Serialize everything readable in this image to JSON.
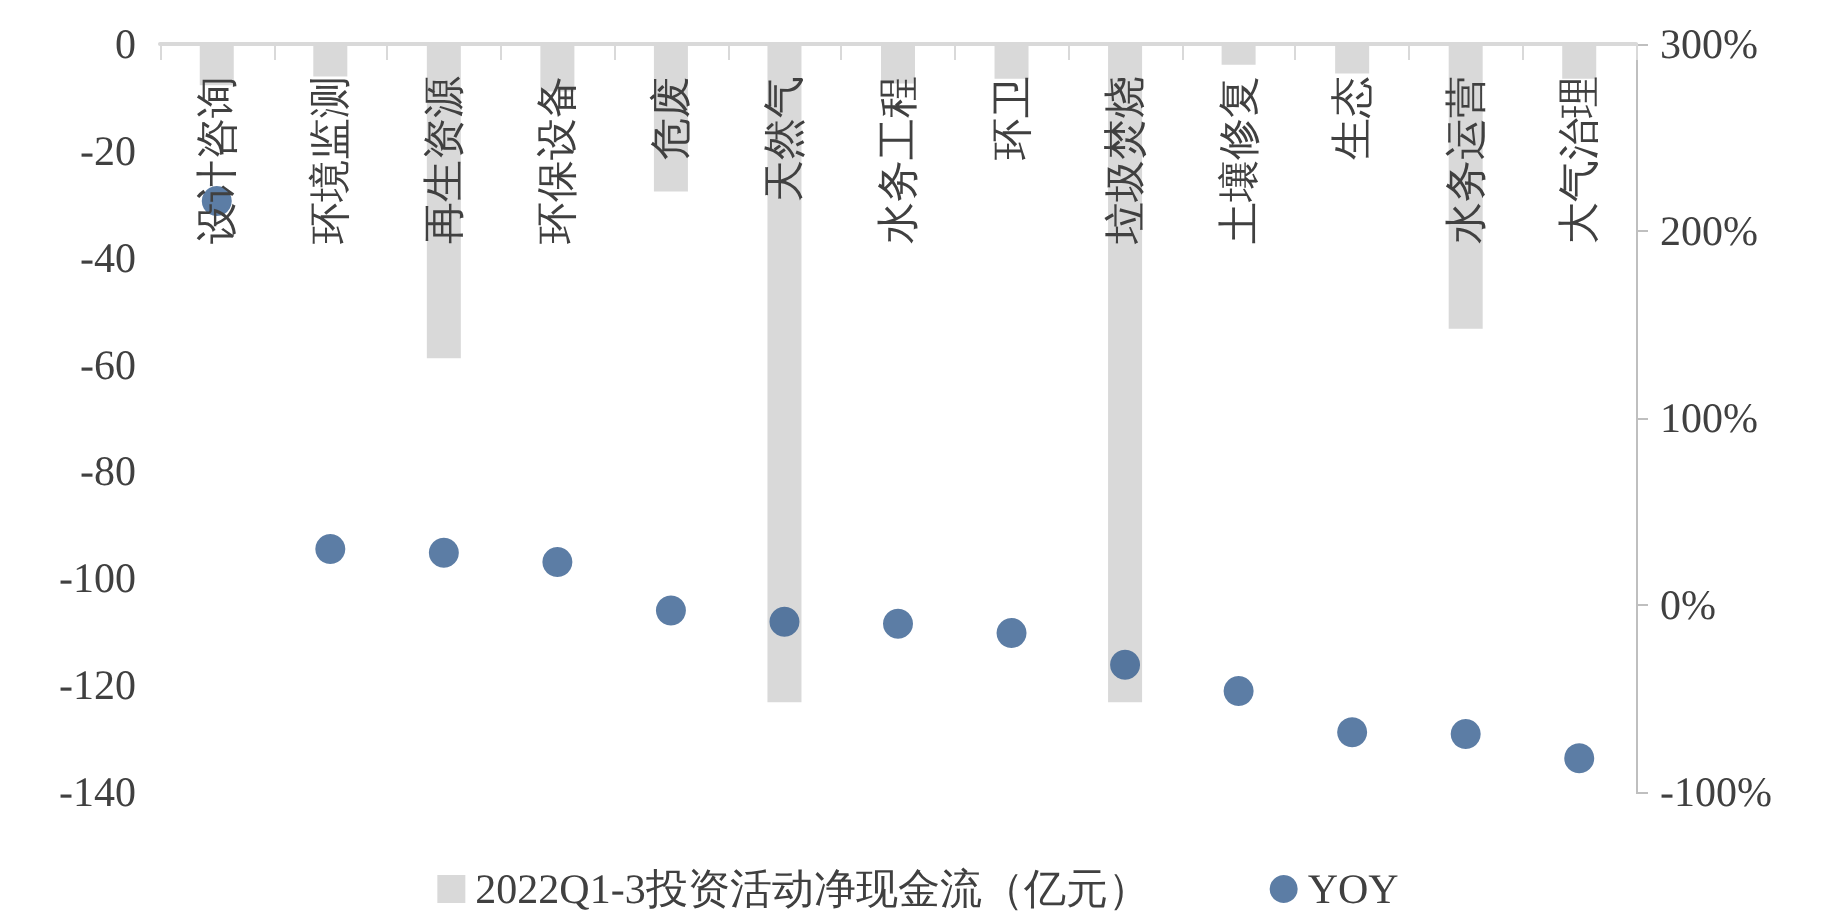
{
  "chart_data": {
    "type": "bar",
    "categories": [
      "设计咨询",
      "环境监测",
      "再生资源",
      "环保设备",
      "危废",
      "天然气",
      "水务工程",
      "环卫",
      "垃圾焚烧",
      "土壤修复",
      "生态",
      "水务运营",
      "大气治理"
    ],
    "series": [
      {
        "name": "2022Q1-3投资活动净现金流（亿元）",
        "color": "#d9d9d9",
        "values": [
          -7.7,
          -6.1,
          -58.8,
          -8.9,
          -27.6,
          -123.2,
          -7.4,
          -6.5,
          -123.2,
          -3.9,
          -5.5,
          -53.3,
          -6.5
        ]
      },
      {
        "name": "YOY",
        "type": "scatter",
        "axis": "y2",
        "color": "#335d8f",
        "values": [
          216,
          30,
          28,
          23,
          -3,
          -9,
          -10,
          -15,
          -32,
          -46,
          -68,
          -69,
          -82
        ]
      }
    ],
    "ylim": [
      -140,
      0
    ],
    "yticks": [
      -140,
      -120,
      -100,
      -80,
      -60,
      -40,
      -20,
      0
    ],
    "y2lim": [
      -100,
      300
    ],
    "y2ticks": [
      {
        "value": -100,
        "label": "-100%"
      },
      {
        "value": 0,
        "label": "0%"
      },
      {
        "value": 100,
        "label": "100%"
      },
      {
        "value": 200,
        "label": "200%"
      },
      {
        "value": 300,
        "label": "300%"
      }
    ],
    "grid": false,
    "legend": "bottom",
    "marker": "circle"
  }
}
